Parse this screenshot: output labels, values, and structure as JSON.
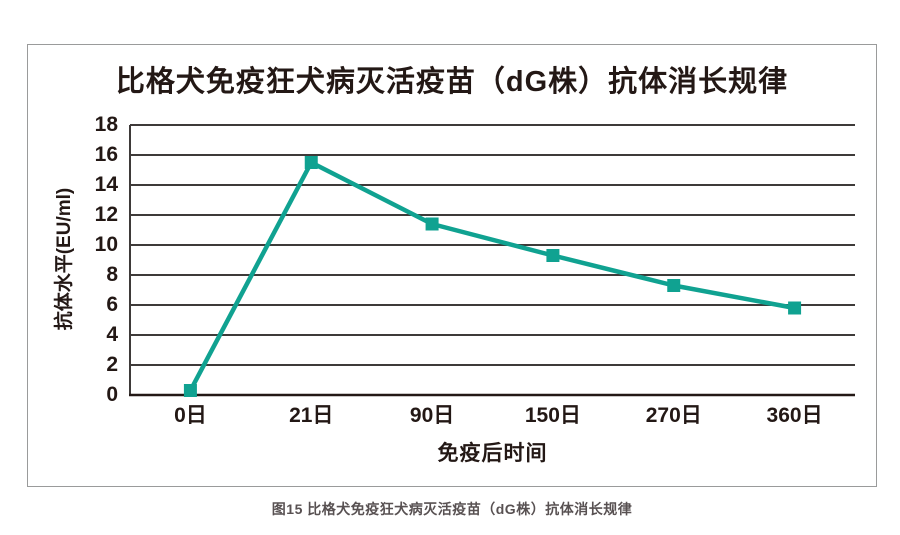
{
  "chart_data": {
    "type": "line",
    "title": "比格犬免疫狂犬病灭活疫苗（dG株）抗体消长规律",
    "caption": "图15 比格犬免疫狂犬病灭活疫苗（dG株）抗体消长规律",
    "xlabel": "免疫后时间",
    "ylabel": "抗体水平(EU/ml)",
    "categories": [
      "0日",
      "21日",
      "90日",
      "150日",
      "270日",
      "360日"
    ],
    "series": [
      {
        "name": "抗体水平",
        "values": [
          0.3,
          15.5,
          11.4,
          9.3,
          7.3,
          5.8
        ]
      }
    ],
    "ylim": [
      0,
      18
    ],
    "yticks": [
      0,
      2,
      4,
      6,
      8,
      10,
      12,
      14,
      16,
      18
    ],
    "grid": true,
    "legend": "none",
    "marker": "square",
    "colors": {
      "line": "#10a291",
      "marker": "#10a291",
      "gridline": "#3e3a39",
      "axis_line": "#231815",
      "text": "#231815",
      "caption_text": "#585152",
      "frame_border": "#9a9b9b",
      "background": "#ffffff"
    }
  }
}
